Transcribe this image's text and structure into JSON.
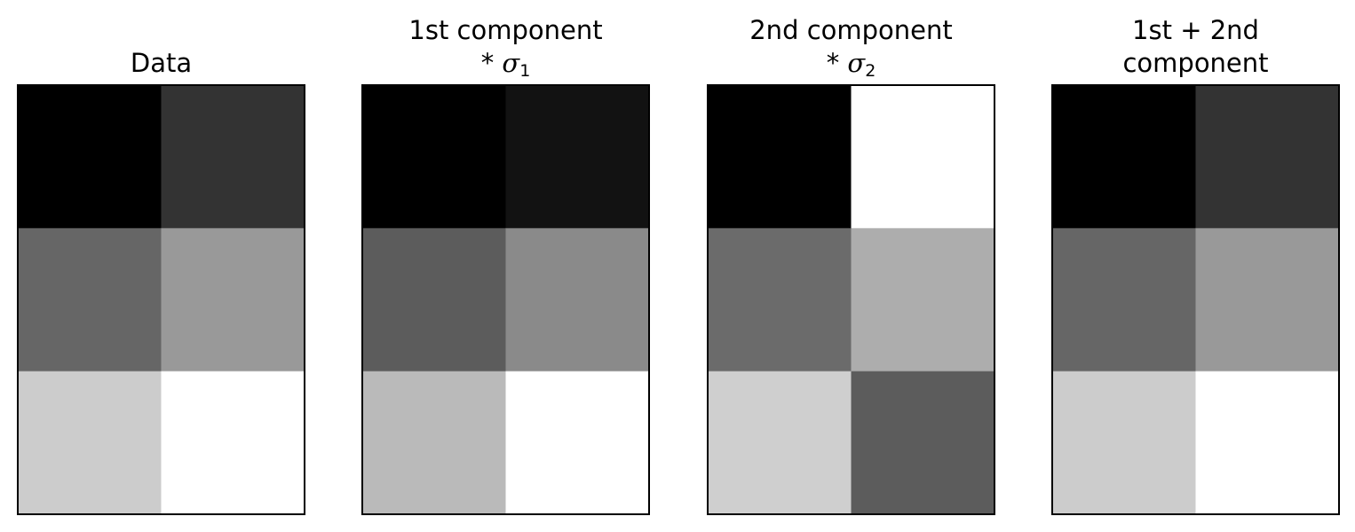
{
  "chart_data": [
    {
      "type": "heatmap",
      "title": "Data",
      "title_lines": [
        {
          "text": "Data"
        }
      ],
      "rows": 3,
      "cols": 2,
      "values": [
        [
          0.0,
          0.2
        ],
        [
          0.4,
          0.6
        ],
        [
          0.8,
          1.0
        ]
      ],
      "colormap": "gray",
      "vmin": 0.0,
      "vmax": 1.0
    },
    {
      "type": "heatmap",
      "title": "1st component * σ1",
      "title_lines": [
        {
          "text": "1st component"
        },
        {
          "text": "* ",
          "symbol": "σ",
          "subscript": "1"
        }
      ],
      "rows": 3,
      "cols": 2,
      "values": [
        [
          0.0,
          0.07
        ],
        [
          0.36,
          0.54
        ],
        [
          0.73,
          1.0
        ]
      ],
      "colormap": "gray",
      "vmin": 0.0,
      "vmax": 1.0
    },
    {
      "type": "heatmap",
      "title": "2nd component * σ2",
      "title_lines": [
        {
          "text": "2nd component"
        },
        {
          "text": "* ",
          "symbol": "σ",
          "subscript": "2"
        }
      ],
      "rows": 3,
      "cols": 2,
      "values": [
        [
          0.0,
          1.0
        ],
        [
          0.42,
          0.68
        ],
        [
          0.81,
          0.36
        ]
      ],
      "colormap": "gray",
      "vmin": 0.0,
      "vmax": 1.0
    },
    {
      "type": "heatmap",
      "title": "1st + 2nd component",
      "title_lines": [
        {
          "text": "1st + 2nd"
        },
        {
          "text": "component"
        }
      ],
      "rows": 3,
      "cols": 2,
      "values": [
        [
          0.0,
          0.2
        ],
        [
          0.4,
          0.6
        ],
        [
          0.8,
          1.0
        ]
      ],
      "colormap": "gray",
      "vmin": 0.0,
      "vmax": 1.0
    }
  ]
}
